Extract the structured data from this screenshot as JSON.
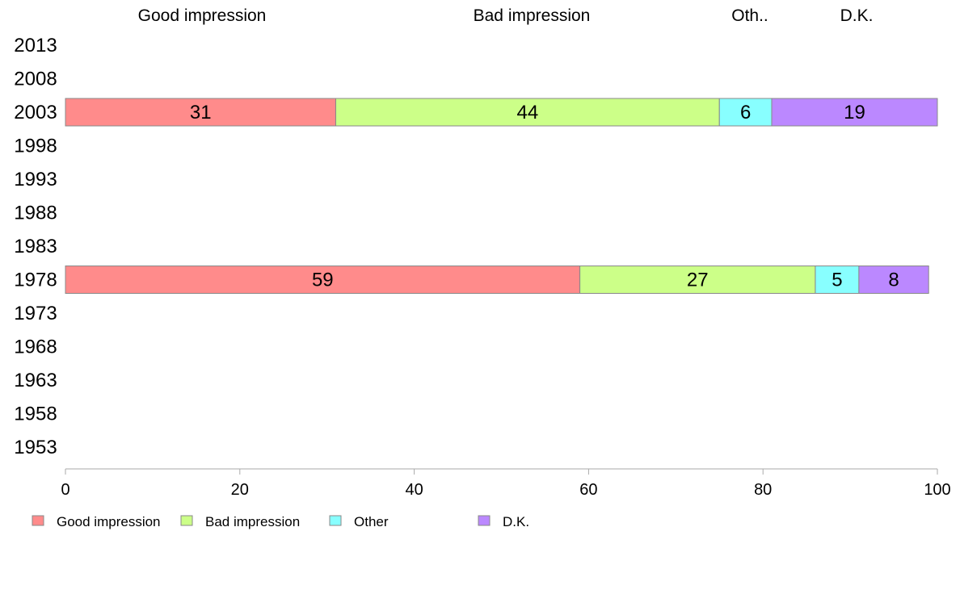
{
  "chart_data": {
    "type": "bar",
    "orientation": "horizontal",
    "stacked": true,
    "title": "",
    "xlabel": "",
    "ylabel": "",
    "xlim": [
      0,
      100
    ],
    "x_ticks": [
      "0",
      "20",
      "40",
      "60",
      "80",
      "100"
    ],
    "categories": [
      "2013",
      "2008",
      "2003",
      "1998",
      "1993",
      "1988",
      "1983",
      "1978",
      "1973",
      "1968",
      "1963",
      "1958",
      "1953"
    ],
    "column_headers": [
      "Good impression",
      "Bad impression",
      "Oth..",
      "D.K."
    ],
    "series": [
      {
        "name": "Good impression",
        "color": "#ff8b8b",
        "values": [
          null,
          null,
          31,
          null,
          null,
          null,
          null,
          59,
          null,
          null,
          null,
          null,
          null
        ]
      },
      {
        "name": "Bad impression",
        "color": "#ccff88",
        "values": [
          null,
          null,
          44,
          null,
          null,
          null,
          null,
          27,
          null,
          null,
          null,
          null,
          null
        ]
      },
      {
        "name": "Other",
        "color": "#88ffff",
        "values": [
          null,
          null,
          6,
          null,
          null,
          null,
          null,
          5,
          null,
          null,
          null,
          null,
          null
        ]
      },
      {
        "name": "D.K.",
        "color": "#bb88ff",
        "values": [
          null,
          null,
          19,
          null,
          null,
          null,
          null,
          8,
          null,
          null,
          null,
          null,
          null
        ]
      }
    ],
    "grid": false,
    "legend_position": "bottom-left"
  }
}
